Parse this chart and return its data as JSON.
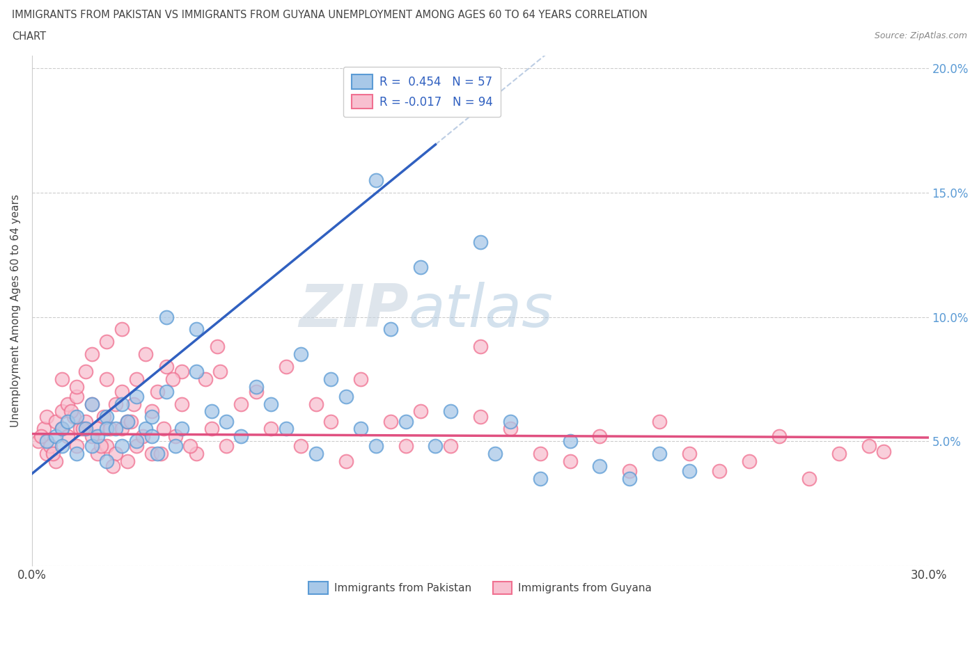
{
  "title_line1": "IMMIGRANTS FROM PAKISTAN VS IMMIGRANTS FROM GUYANA UNEMPLOYMENT AMONG AGES 60 TO 64 YEARS CORRELATION",
  "title_line2": "CHART",
  "source_text": "Source: ZipAtlas.com",
  "ylabel": "Unemployment Among Ages 60 to 64 years",
  "x_min": 0.0,
  "x_max": 0.3,
  "y_min": 0.0,
  "y_max": 0.205,
  "x_ticks": [
    0.0,
    0.05,
    0.1,
    0.15,
    0.2,
    0.25,
    0.3
  ],
  "y_ticks": [
    0.0,
    0.05,
    0.1,
    0.15,
    0.2
  ],
  "r_pakistan": 0.454,
  "n_pakistan": 57,
  "r_guyana": -0.017,
  "n_guyana": 94,
  "pakistan_color": "#a8c8e8",
  "pakistan_edge": "#5b9bd5",
  "guyana_color": "#f8c0d0",
  "guyana_edge": "#f07090",
  "trendline_pakistan_color": "#3060c0",
  "trendline_guyana_color": "#e05080",
  "trendline_pakistan_dash_color": "#a0b8d8",
  "watermark_text": "ZIPatlas",
  "watermark_color": "#c8d8e8",
  "pakistan_scatter_x": [
    0.005,
    0.008,
    0.01,
    0.01,
    0.012,
    0.015,
    0.015,
    0.018,
    0.02,
    0.02,
    0.022,
    0.025,
    0.025,
    0.025,
    0.028,
    0.03,
    0.03,
    0.032,
    0.035,
    0.035,
    0.038,
    0.04,
    0.04,
    0.042,
    0.045,
    0.048,
    0.05,
    0.055,
    0.06,
    0.065,
    0.07,
    0.075,
    0.08,
    0.085,
    0.09,
    0.095,
    0.1,
    0.105,
    0.11,
    0.115,
    0.12,
    0.125,
    0.13,
    0.135,
    0.14,
    0.15,
    0.155,
    0.16,
    0.17,
    0.18,
    0.19,
    0.2,
    0.21,
    0.22,
    0.045,
    0.055,
    0.115
  ],
  "pakistan_scatter_y": [
    0.05,
    0.052,
    0.055,
    0.048,
    0.058,
    0.06,
    0.045,
    0.055,
    0.048,
    0.065,
    0.052,
    0.06,
    0.055,
    0.042,
    0.055,
    0.048,
    0.065,
    0.058,
    0.05,
    0.068,
    0.055,
    0.06,
    0.052,
    0.045,
    0.07,
    0.048,
    0.055,
    0.078,
    0.062,
    0.058,
    0.052,
    0.072,
    0.065,
    0.055,
    0.085,
    0.045,
    0.075,
    0.068,
    0.055,
    0.048,
    0.095,
    0.058,
    0.12,
    0.048,
    0.062,
    0.13,
    0.045,
    0.058,
    0.035,
    0.05,
    0.04,
    0.035,
    0.045,
    0.038,
    0.1,
    0.095,
    0.155
  ],
  "guyana_scatter_x": [
    0.002,
    0.004,
    0.005,
    0.005,
    0.006,
    0.008,
    0.008,
    0.01,
    0.01,
    0.01,
    0.012,
    0.012,
    0.014,
    0.015,
    0.015,
    0.015,
    0.016,
    0.018,
    0.018,
    0.02,
    0.02,
    0.02,
    0.022,
    0.022,
    0.024,
    0.025,
    0.025,
    0.025,
    0.026,
    0.028,
    0.028,
    0.03,
    0.03,
    0.03,
    0.032,
    0.032,
    0.034,
    0.035,
    0.035,
    0.038,
    0.04,
    0.04,
    0.042,
    0.044,
    0.045,
    0.048,
    0.05,
    0.05,
    0.055,
    0.058,
    0.06,
    0.062,
    0.065,
    0.07,
    0.075,
    0.08,
    0.085,
    0.09,
    0.095,
    0.1,
    0.105,
    0.11,
    0.12,
    0.125,
    0.13,
    0.14,
    0.15,
    0.16,
    0.17,
    0.18,
    0.19,
    0.2,
    0.21,
    0.22,
    0.23,
    0.24,
    0.25,
    0.26,
    0.27,
    0.28,
    0.003,
    0.007,
    0.013,
    0.017,
    0.023,
    0.027,
    0.033,
    0.037,
    0.043,
    0.047,
    0.053,
    0.063,
    0.15,
    0.285
  ],
  "guyana_scatter_y": [
    0.05,
    0.055,
    0.06,
    0.045,
    0.048,
    0.058,
    0.042,
    0.062,
    0.055,
    0.075,
    0.065,
    0.052,
    0.06,
    0.068,
    0.048,
    0.072,
    0.055,
    0.058,
    0.078,
    0.065,
    0.052,
    0.085,
    0.055,
    0.045,
    0.06,
    0.075,
    0.048,
    0.09,
    0.055,
    0.065,
    0.045,
    0.07,
    0.055,
    0.095,
    0.058,
    0.042,
    0.065,
    0.075,
    0.048,
    0.085,
    0.062,
    0.045,
    0.07,
    0.055,
    0.08,
    0.052,
    0.065,
    0.078,
    0.045,
    0.075,
    0.055,
    0.088,
    0.048,
    0.065,
    0.07,
    0.055,
    0.08,
    0.048,
    0.065,
    0.058,
    0.042,
    0.075,
    0.058,
    0.048,
    0.062,
    0.048,
    0.06,
    0.055,
    0.045,
    0.042,
    0.052,
    0.038,
    0.058,
    0.045,
    0.038,
    0.042,
    0.052,
    0.035,
    0.045,
    0.048,
    0.052,
    0.045,
    0.062,
    0.055,
    0.048,
    0.04,
    0.058,
    0.052,
    0.045,
    0.075,
    0.048,
    0.078,
    0.088,
    0.046
  ]
}
